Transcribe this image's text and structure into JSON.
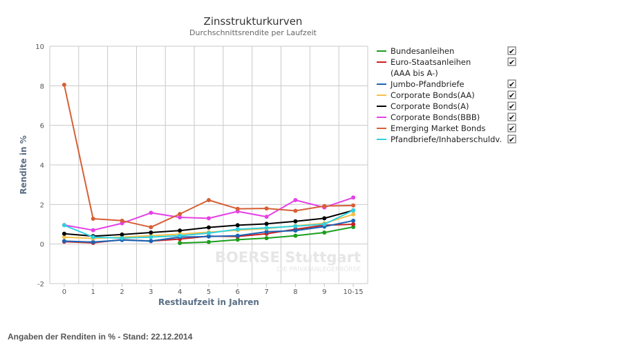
{
  "chart_data": {
    "type": "line",
    "title": "Zinsstrukturkurven",
    "subtitle": "Durchschnittsrendite per Laufzeit",
    "xlabel": "Restlaufzeit in Jahren",
    "ylabel": "Rendite in %",
    "categories": [
      "0",
      "1",
      "2",
      "3",
      "4",
      "5",
      "6",
      "7",
      "8",
      "9",
      "10-15"
    ],
    "ylim": [
      -2,
      10
    ],
    "yticks": [
      -2,
      0,
      2,
      4,
      6,
      8,
      10
    ],
    "grid": true,
    "legend_position": "right",
    "series": [
      {
        "name": "Bundesanleihen",
        "color": "#1c9e1c",
        "checked": true,
        "values": [
          null,
          null,
          null,
          null,
          0.05,
          0.1,
          0.22,
          0.3,
          0.42,
          0.58,
          0.86
        ]
      },
      {
        "name": "Euro-Staatsanleihen",
        "name_line2": "(AAA bis A-)",
        "color": "#cc1f1f",
        "checked": true,
        "values": [
          0.12,
          0.06,
          0.22,
          0.15,
          0.25,
          0.4,
          0.38,
          0.52,
          0.75,
          0.95,
          1.0
        ]
      },
      {
        "name": "Jumbo-Pfandbriefe",
        "color": "#1a64b5",
        "checked": true,
        "values": [
          0.15,
          0.1,
          0.2,
          0.15,
          0.35,
          0.38,
          0.42,
          0.62,
          0.68,
          0.88,
          1.18
        ]
      },
      {
        "name": "Corporate Bonds(AA)",
        "color": "#f5c04a",
        "checked": true,
        "values": [
          0.35,
          0.28,
          0.35,
          0.42,
          0.5,
          0.6,
          0.7,
          0.78,
          0.92,
          1.05,
          1.5
        ]
      },
      {
        "name": "Corporate Bonds(A)",
        "color": "#000000",
        "checked": true,
        "values": [
          0.52,
          0.4,
          0.48,
          0.58,
          0.68,
          0.84,
          0.95,
          1.02,
          1.15,
          1.3,
          1.7
        ]
      },
      {
        "name": "Corporate Bonds(BBB)",
        "color": "#e640e6",
        "checked": true,
        "values": [
          0.96,
          0.7,
          1.05,
          1.58,
          1.35,
          1.3,
          1.65,
          1.38,
          2.22,
          1.85,
          2.35
        ]
      },
      {
        "name": "Emerging Market Bonds",
        "color": "#d65f35",
        "checked": true,
        "values": [
          8.05,
          1.28,
          1.18,
          0.85,
          1.52,
          2.22,
          1.78,
          1.8,
          1.68,
          1.92,
          1.95
        ]
      },
      {
        "name": "Pfandbriefe/Inhaberschuldv.",
        "color": "#2ed2e0",
        "checked": true,
        "values": [
          0.95,
          0.35,
          0.3,
          0.35,
          0.42,
          0.55,
          0.75,
          0.82,
          0.9,
          1.0,
          1.7
        ]
      }
    ]
  },
  "watermark": {
    "brand": "BOERSE Stuttgart",
    "tagline": "DIE PRIVATANLEGERBÖRSE"
  },
  "footer": {
    "text": "Angaben der Renditen in % - Stand: 22.12.2014"
  },
  "checkbox_glyph": "✔"
}
